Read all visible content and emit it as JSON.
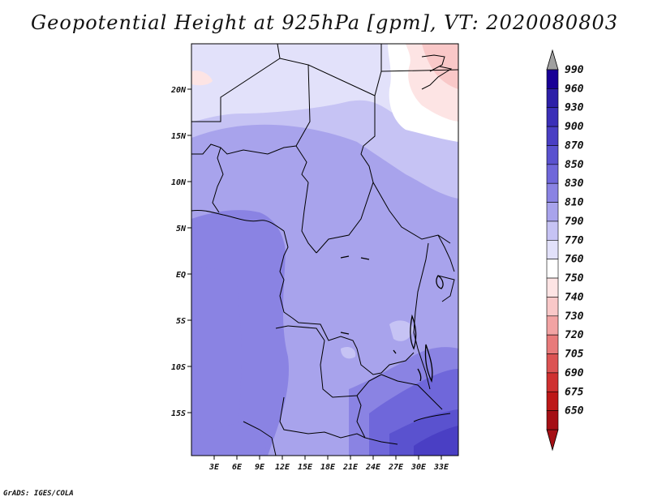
{
  "title": "Geopotential Height at 925hPa [gpm], VT: 2020080803",
  "credit": "GrADS: IGES/COLA",
  "lat_ticks": [
    "20N",
    "15N",
    "10N",
    "5N",
    "EQ",
    "5S",
    "10S",
    "15S"
  ],
  "lon_ticks": [
    "3E",
    "6E",
    "9E",
    "12E",
    "15E",
    "18E",
    "21E",
    "24E",
    "27E",
    "30E",
    "33E"
  ],
  "colorbar": {
    "levels": [
      "990",
      "960",
      "930",
      "900",
      "870",
      "850",
      "830",
      "810",
      "790",
      "770",
      "760",
      "750",
      "740",
      "730",
      "720",
      "705",
      "690",
      "675",
      "650"
    ],
    "colors": [
      "#190096",
      "#2d1fa8",
      "#3b2fb8",
      "#4a3fc4",
      "#5a52cf",
      "#6f67da",
      "#8a83e3",
      "#a8a3ec",
      "#c6c3f4",
      "#e2e1fa",
      "#ffffff",
      "#fde4e4",
      "#f9c8c8",
      "#f2a3a3",
      "#e87a7a",
      "#dc5353",
      "#cf3030",
      "#bd1818",
      "#a50f15"
    ],
    "top_arrow_color": "#a0a0a0",
    "bottom_arrow_color": "#a50f15"
  }
}
